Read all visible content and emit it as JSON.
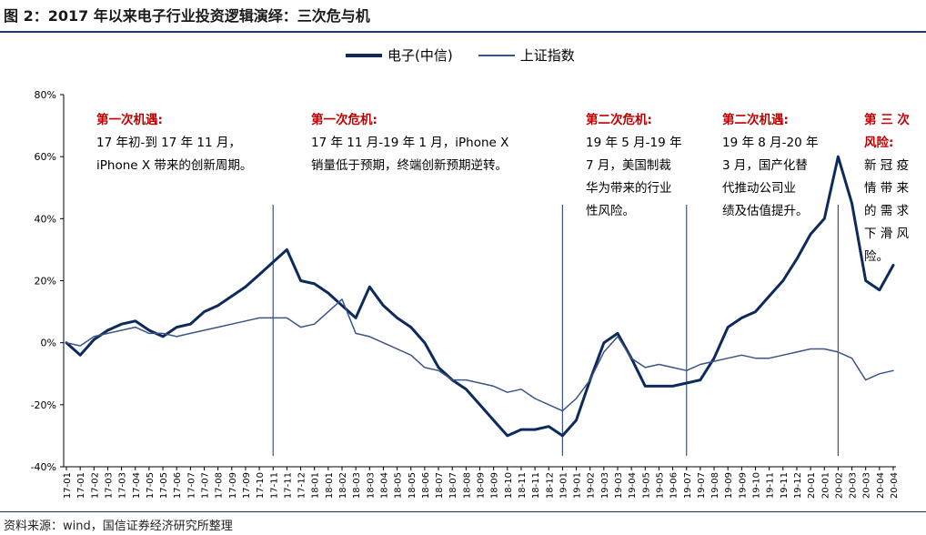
{
  "title": "图 2：2017 年以来电子行业投资逻辑演绎：三次危与机",
  "source": "资料来源：wind，国信证券经济研究所整理",
  "legend": {
    "s1": "电子(中信)",
    "s2": "上证指数"
  },
  "annotations": [
    {
      "head": "第一次机遇:",
      "body": [
        "17 年初-到 17 年 11 月，",
        "iPhone X 带来的创新周期。"
      ]
    },
    {
      "head": "第一次危机:",
      "body": [
        "17 年 11 月-19 年 1 月，iPhone X",
        "销量低于预期，终端创新预期逆转。"
      ]
    },
    {
      "head": "第二次危机:",
      "body": [
        "19 年 5 月-19 年",
        "7 月，美国制裁",
        "华为带来的行业",
        "性风险。"
      ]
    },
    {
      "head": "第二次机遇:",
      "body": [
        "19 年 8 月-20 年",
        "3 月，国产化替",
        "代推动公司业",
        "绩及估值提升。"
      ]
    },
    {
      "head": "第 三 次",
      "head2": "风险:",
      "body": [
        "新 冠 疫",
        "情 带 来",
        "的 需 求",
        "下 滑 风",
        "险。"
      ]
    }
  ],
  "colors": {
    "s1": "#0d2a5c",
    "s2": "#3a5585",
    "accent": "#c00000"
  },
  "chart_data": {
    "type": "line",
    "ylim": [
      -40,
      80
    ],
    "yticks": [
      -40,
      -20,
      0,
      20,
      40,
      60,
      80
    ],
    "ytick_labels": [
      "-40%",
      "-20%",
      "0%",
      "20%",
      "40%",
      "60%",
      "80%"
    ],
    "x_labels": [
      "17-01",
      "17-01",
      "17-02",
      "17-03",
      "17-03",
      "17-04",
      "17-05",
      "17-05",
      "17-06",
      "17-07",
      "17-07",
      "17-08",
      "17-09",
      "17-09",
      "17-10",
      "17-11",
      "17-11",
      "17-12",
      "18-01",
      "18-01",
      "18-02",
      "18-03",
      "18-03",
      "18-04",
      "18-05",
      "18-05",
      "18-06",
      "18-07",
      "18-07",
      "18-08",
      "18-09",
      "18-09",
      "18-10",
      "18-11",
      "18-11",
      "18-12",
      "19-01",
      "19-01",
      "19-02",
      "19-03",
      "19-03",
      "19-04",
      "19-05",
      "19-05",
      "19-06",
      "19-07",
      "19-07",
      "19-08",
      "19-09",
      "19-09",
      "19-10",
      "19-11",
      "19-11",
      "19-12",
      "20-01",
      "20-01",
      "20-02",
      "20-03",
      "20-03",
      "20-04",
      "20-04"
    ],
    "vlines_at_label_index": [
      15,
      36,
      45,
      56
    ],
    "series": [
      {
        "name": "电子(中信)",
        "values": [
          0,
          -4,
          1,
          4,
          6,
          7,
          4,
          2,
          5,
          6,
          10,
          12,
          15,
          18,
          22,
          26,
          30,
          20,
          19,
          16,
          12,
          8,
          18,
          12,
          8,
          5,
          0,
          -8,
          -12,
          -15,
          -20,
          -25,
          -30,
          -28,
          -28,
          -27,
          -30,
          -25,
          -12,
          0,
          3,
          -5,
          -14,
          -14,
          -14,
          -13,
          -12,
          -5,
          5,
          8,
          10,
          15,
          20,
          27,
          35,
          40,
          60,
          45,
          20,
          17,
          25
        ],
        "color": "#0d2a5c",
        "width": 3
      },
      {
        "name": "上证指数",
        "values": [
          0,
          -1,
          2,
          3,
          4,
          5,
          3,
          3,
          2,
          3,
          4,
          5,
          6,
          7,
          8,
          8,
          8,
          5,
          6,
          10,
          14,
          3,
          2,
          0,
          -2,
          -4,
          -8,
          -9,
          -12,
          -12,
          -13,
          -14,
          -16,
          -15,
          -18,
          -20,
          -22,
          -18,
          -12,
          -3,
          2,
          -5,
          -8,
          -7,
          -8,
          -9,
          -7,
          -6,
          -5,
          -4,
          -5,
          -5,
          -4,
          -3,
          -2,
          -2,
          -3,
          -5,
          -12,
          -10,
          -9
        ],
        "color": "#3a5585",
        "width": 1.5
      }
    ]
  }
}
